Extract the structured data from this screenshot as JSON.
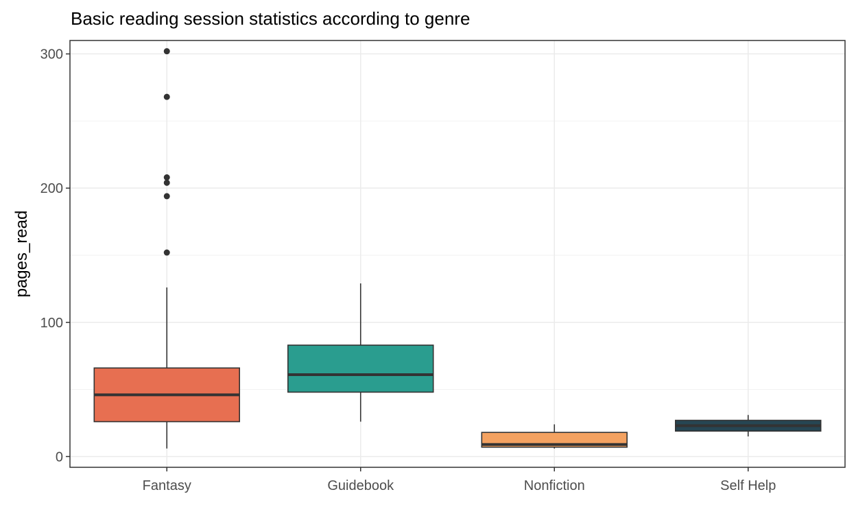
{
  "chart_data": {
    "type": "boxplot",
    "title": "Basic reading session statistics according to genre",
    "xlabel": "",
    "ylabel": "pages_read",
    "ylim": [
      -8,
      310
    ],
    "yticks": [
      0,
      100,
      200,
      300
    ],
    "ytick_labels": [
      "0",
      "100",
      "200",
      "300"
    ],
    "categories": [
      "Fantasy",
      "Guidebook",
      "Nonfiction",
      "Self Help"
    ],
    "boxes": [
      {
        "category": "Fantasy",
        "fill": "#E76F51",
        "min": 6,
        "q1": 26,
        "median": 46,
        "q3": 66,
        "max": 126,
        "outliers": [
          152,
          194,
          204,
          208,
          268,
          302
        ]
      },
      {
        "category": "Guidebook",
        "fill": "#2A9D8F",
        "min": 26,
        "q1": 48,
        "median": 61,
        "q3": 83,
        "max": 129,
        "outliers": []
      },
      {
        "category": "Nonfiction",
        "fill": "#F4A261",
        "min": 6,
        "q1": 7,
        "median": 9,
        "q3": 18,
        "max": 24,
        "outliers": []
      },
      {
        "category": "Self Help",
        "fill": "#264653",
        "min": 15,
        "q1": 19,
        "median": 23,
        "q3": 27,
        "max": 31,
        "outliers": []
      }
    ],
    "grid": true,
    "legend": "none"
  }
}
